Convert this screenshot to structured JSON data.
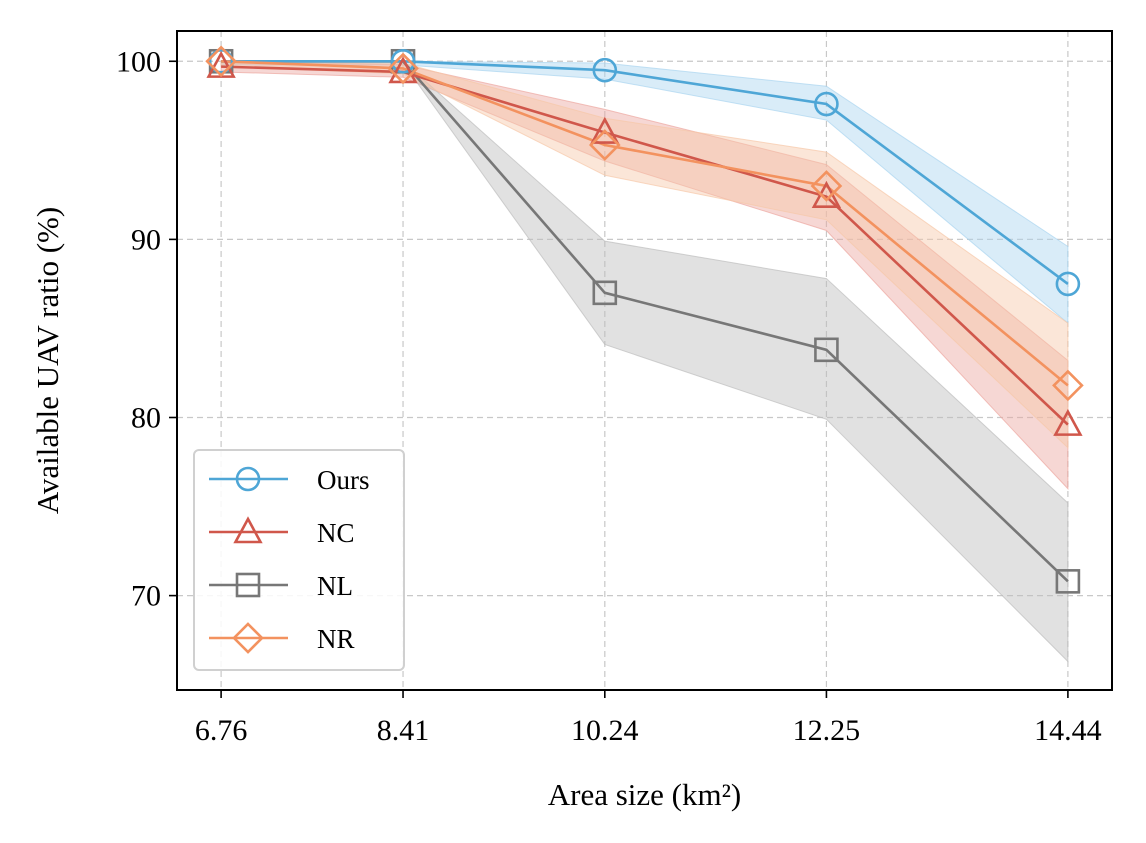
{
  "chart_data": {
    "type": "line",
    "xlabel": "Area size (km²)",
    "ylabel": "Available UAV ratio (%)",
    "x": [
      6.76,
      8.41,
      10.24,
      12.25,
      14.44
    ],
    "x_tick_labels": [
      "6.76",
      "8.41",
      "10.24",
      "12.25",
      "14.44"
    ],
    "xlim": [
      6.36,
      14.84
    ],
    "ylim": [
      64.7,
      101.7
    ],
    "y_ticks": [
      70,
      80,
      90,
      100
    ],
    "y_tick_labels": [
      "70",
      "80",
      "90",
      "100"
    ],
    "grid": true,
    "legend_position": "lower-left",
    "series": [
      {
        "name": "Ours",
        "marker": "circle",
        "color": "#4ea6d6",
        "band_color": "#aad4f0",
        "values": [
          100.0,
          100.0,
          99.5,
          97.6,
          87.5
        ],
        "lower": [
          99.8,
          99.8,
          99.0,
          96.7,
          85.3
        ],
        "upper": [
          100.0,
          100.0,
          99.9,
          98.6,
          89.6
        ]
      },
      {
        "name": "NC",
        "marker": "triangle",
        "color": "#d0574b",
        "band_color": "#eca79f",
        "values": [
          99.7,
          99.4,
          96.0,
          92.4,
          79.6
        ],
        "lower": [
          99.4,
          99.1,
          94.4,
          90.5,
          76.0
        ],
        "upper": [
          100.0,
          99.8,
          97.3,
          94.2,
          83.2
        ]
      },
      {
        "name": "NL",
        "marker": "square",
        "color": "#777777",
        "band_color": "#bdbdbd",
        "values": [
          100.0,
          100.0,
          87.0,
          83.8,
          70.8
        ],
        "lower": [
          99.9,
          99.9,
          84.1,
          79.9,
          66.3
        ],
        "upper": [
          100.0,
          100.0,
          89.9,
          87.8,
          75.2
        ]
      },
      {
        "name": "NR",
        "marker": "diamond",
        "color": "#f3925f",
        "band_color": "#f7c8a8",
        "values": [
          100.0,
          99.6,
          95.3,
          93.0,
          81.8
        ],
        "lower": [
          99.7,
          99.3,
          93.6,
          91.1,
          78.3
        ],
        "upper": [
          100.0,
          99.9,
          96.8,
          94.9,
          85.3
        ]
      }
    ]
  }
}
